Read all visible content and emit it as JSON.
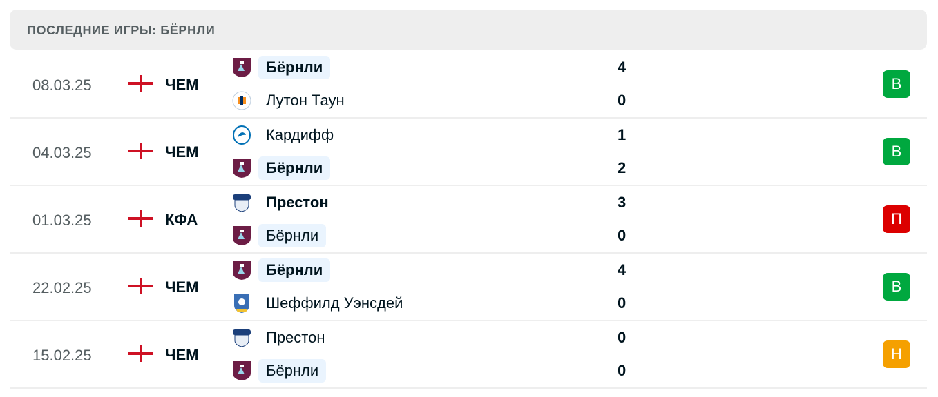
{
  "header": {
    "title": "ПОСЛЕДНИЕ ИГРЫ: БЁРНЛИ"
  },
  "colors": {
    "win": "#00a83f",
    "loss": "#dc0000",
    "draw": "#f5a000",
    "highlight": "#eaf4fe"
  },
  "matches": [
    {
      "date": "08.03.25",
      "flag": "england-flag-icon",
      "competition": "ЧЕМ",
      "home": {
        "name": "Бёрнли",
        "logo": "burnley-crest-icon",
        "score": "4",
        "highlight": true,
        "winner": true
      },
      "away": {
        "name": "Лутон Таун",
        "logo": "luton-crest-icon",
        "score": "0",
        "highlight": false,
        "winner": false
      },
      "result": "В",
      "result_type": "win"
    },
    {
      "date": "04.03.25",
      "flag": "england-flag-icon",
      "competition": "ЧЕМ",
      "home": {
        "name": "Кардифф",
        "logo": "cardiff-crest-icon",
        "score": "1",
        "highlight": false,
        "winner": false
      },
      "away": {
        "name": "Бёрнли",
        "logo": "burnley-crest-icon",
        "score": "2",
        "highlight": true,
        "winner": true
      },
      "result": "В",
      "result_type": "win"
    },
    {
      "date": "01.03.25",
      "flag": "england-flag-icon",
      "competition": "КФА",
      "home": {
        "name": "Престон",
        "logo": "preston-crest-icon",
        "score": "3",
        "highlight": false,
        "winner": true
      },
      "away": {
        "name": "Бёрнли",
        "logo": "burnley-crest-icon",
        "score": "0",
        "highlight": true,
        "winner": false
      },
      "result": "П",
      "result_type": "loss"
    },
    {
      "date": "22.02.25",
      "flag": "england-flag-icon",
      "competition": "ЧЕМ",
      "home": {
        "name": "Бёрнли",
        "logo": "burnley-crest-icon",
        "score": "4",
        "highlight": true,
        "winner": true
      },
      "away": {
        "name": "Шеффилд Уэнсдей",
        "logo": "sheffield-wednesday-crest-icon",
        "score": "0",
        "highlight": false,
        "winner": false
      },
      "result": "В",
      "result_type": "win"
    },
    {
      "date": "15.02.25",
      "flag": "england-flag-icon",
      "competition": "ЧЕМ",
      "home": {
        "name": "Престон",
        "logo": "preston-crest-icon",
        "score": "0",
        "highlight": false,
        "winner": false
      },
      "away": {
        "name": "Бёрнли",
        "logo": "burnley-crest-icon",
        "score": "0",
        "highlight": true,
        "winner": false
      },
      "result": "Н",
      "result_type": "draw"
    }
  ]
}
